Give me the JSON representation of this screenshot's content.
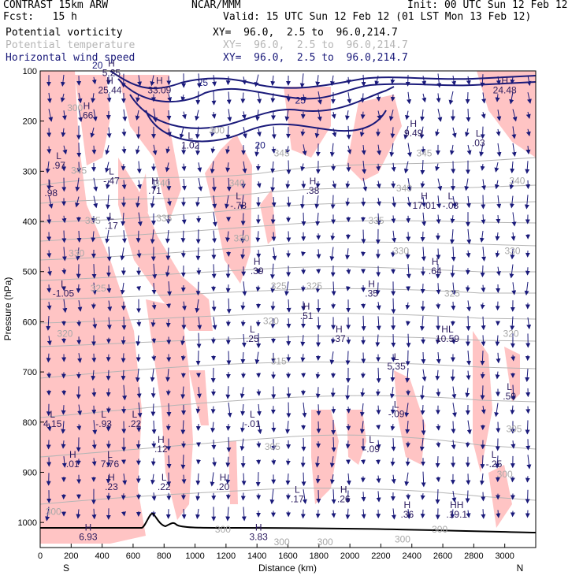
{
  "header": {
    "model": "CONTRAST 15km ARW",
    "center": "NCAR/MMM",
    "init": "Init: 00 UTC Sun 12 Feb 12",
    "fcst": "Fcst:   15 h",
    "valid": "Valid: 15 UTC Sun 12 Feb 12 (01 LST Mon 13 Feb 12)",
    "fields": [
      {
        "name": "Potential vorticity",
        "xy": "XY=  96.0,  2.5 to  96.0,214.7"
      },
      {
        "name": "Potential temperature",
        "xy": "XY=  96.0,  2.5 to  96.0,214.7"
      },
      {
        "name": "Horizontal wind speed",
        "xy": "XY=  96.0,  2.5 to  96.0,214.7"
      }
    ]
  },
  "colors": {
    "pv_fill": "#ffc4c4",
    "theta": "#b5b5b5",
    "wind": "#1a1a7a",
    "terrain": "#000000"
  },
  "chart_data": {
    "type": "cross-section",
    "xlabel": "Distance (km)",
    "ylabel": "Pressure (hPa)",
    "xlim": [
      0,
      3200
    ],
    "ylim": [
      1050,
      100
    ],
    "xticks": [
      "0",
      "200",
      "400",
      "600",
      "800",
      "1000",
      "1200",
      "1400",
      "1600",
      "1800",
      "2000",
      "2200",
      "2400",
      "2600",
      "2800",
      "3000"
    ],
    "yticks": [
      "100",
      "200",
      "300",
      "400",
      "500",
      "600",
      "700",
      "800",
      "900",
      "1000"
    ],
    "ends": {
      "left": "S",
      "right": "N"
    },
    "theta_labels": [
      {
        "t": "300",
        "x": 1140,
        "p": 225
      },
      {
        "t": "345",
        "x": 250,
        "p": 305
      },
      {
        "t": "340",
        "x": 790,
        "p": 330
      },
      {
        "t": "340",
        "x": 1270,
        "p": 330
      },
      {
        "t": "345",
        "x": 1560,
        "p": 270
      },
      {
        "t": "345",
        "x": 2480,
        "p": 270
      },
      {
        "t": "340",
        "x": 2350,
        "p": 340
      },
      {
        "t": "340",
        "x": 3080,
        "p": 325
      },
      {
        "t": "335",
        "x": 340,
        "p": 405
      },
      {
        "t": "335",
        "x": 800,
        "p": 400
      },
      {
        "t": "335",
        "x": 2170,
        "p": 405
      },
      {
        "t": "330",
        "x": 235,
        "p": 470
      },
      {
        "t": "330",
        "x": 1300,
        "p": 440
      },
      {
        "t": "330",
        "x": 2330,
        "p": 465
      },
      {
        "t": "330",
        "x": 3050,
        "p": 465
      },
      {
        "t": "325",
        "x": 375,
        "p": 540
      },
      {
        "t": "325",
        "x": 1540,
        "p": 535
      },
      {
        "t": "325",
        "x": 1770,
        "p": 535
      },
      {
        "t": "325",
        "x": 2660,
        "p": 550
      },
      {
        "t": "320",
        "x": 160,
        "p": 630
      },
      {
        "t": "320",
        "x": 1490,
        "p": 605
      },
      {
        "t": "320",
        "x": 3040,
        "p": 630
      },
      {
        "t": "315",
        "x": 1540,
        "p": 685
      },
      {
        "t": "305",
        "x": 1500,
        "p": 855
      },
      {
        "t": "305",
        "x": 3060,
        "p": 820
      },
      {
        "t": "300",
        "x": 3000,
        "p": 910
      },
      {
        "t": "300",
        "x": 85,
        "p": 985
      },
      {
        "t": "300",
        "x": 1180,
        "p": 1020
      },
      {
        "t": "300",
        "x": 1560,
        "p": 1045
      },
      {
        "t": "300",
        "x": 1840,
        "p": 1045
      },
      {
        "t": "300",
        "x": 2340,
        "p": 1040
      },
      {
        "t": "300",
        "x": 2580,
        "p": 1020
      },
      {
        "t": "300",
        "x": 225,
        "p": 180
      }
    ],
    "extrema": [
      {
        "k": "H",
        "v": "5.25",
        "x": 460,
        "p": 110
      },
      {
        "k": "H",
        "v": "25.44",
        "x": 450,
        "p": 145
      },
      {
        "k": "H",
        "v": "33.09",
        "x": 770,
        "p": 145
      },
      {
        "k": "H",
        "v": ".66",
        "x": 300,
        "p": 195
      },
      {
        "k": "L",
        "v": "1.02",
        "x": 970,
        "p": 255
      },
      {
        "k": "H",
        "v": "9.49",
        "x": 2410,
        "p": 230
      },
      {
        "k": "L",
        "v": ".03",
        "x": 2830,
        "p": 250
      },
      {
        "k": "H",
        "v": "24.48",
        "x": 3000,
        "p": 145
      },
      {
        "k": "L",
        "v": ".97",
        "x": 120,
        "p": 295
      },
      {
        "k": "L",
        "v": "-.47",
        "x": 460,
        "p": 325
      },
      {
        "k": "H",
        "v": ".71",
        "x": 740,
        "p": 345
      },
      {
        "k": "H",
        "v": ".38",
        "x": 1760,
        "p": 345
      },
      {
        "k": "H",
        "v": "17.01",
        "x": 2480,
        "p": 375
      },
      {
        "k": "L",
        "v": "-.03",
        "x": 2650,
        "p": 375
      },
      {
        "k": "L",
        "v": ".98",
        "x": 70,
        "p": 350
      },
      {
        "k": "L",
        "v": "-.78",
        "x": 1280,
        "p": 375
      },
      {
        "k": "L",
        "v": ".17",
        "x": 460,
        "p": 415
      },
      {
        "k": "H",
        "v": ".39",
        "x": 1400,
        "p": 505
      },
      {
        "k": "H",
        "v": ".64",
        "x": 2550,
        "p": 505
      },
      {
        "k": "L",
        "v": "-1.05",
        "x": 150,
        "p": 550
      },
      {
        "k": "H",
        "v": ".35",
        "x": 2140,
        "p": 550
      },
      {
        "k": "H",
        "v": ".51",
        "x": 1720,
        "p": 595
      },
      {
        "k": "L",
        "v": ".25",
        "x": 1370,
        "p": 640
      },
      {
        "k": "H",
        "v": ".37",
        "x": 1930,
        "p": 640
      },
      {
        "k": "HL",
        "v": "10.59",
        "x": 2630,
        "p": 640
      },
      {
        "k": "L",
        "v": "5.35",
        "x": 2300,
        "p": 695
      },
      {
        "k": "L",
        "v": ".50",
        "x": 3030,
        "p": 755
      },
      {
        "k": "L",
        "v": "-.09",
        "x": 2300,
        "p": 790
      },
      {
        "k": "L",
        "v": "4.15",
        "x": 80,
        "p": 810
      },
      {
        "k": "L",
        "v": "-.93",
        "x": 410,
        "p": 810
      },
      {
        "k": "L",
        "v": ".22",
        "x": 610,
        "p": 810
      },
      {
        "k": "L",
        "v": "-.01",
        "x": 1370,
        "p": 810
      },
      {
        "k": "H",
        "v": ".12",
        "x": 780,
        "p": 860
      },
      {
        "k": "L",
        "v": "-.09",
        "x": 2140,
        "p": 860
      },
      {
        "k": "H",
        "v": ".01",
        "x": 210,
        "p": 890
      },
      {
        "k": "L",
        "v": "7.76",
        "x": 450,
        "p": 890
      },
      {
        "k": "L",
        "v": "-.25",
        "x": 2930,
        "p": 890
      },
      {
        "k": "H",
        "v": ".23",
        "x": 460,
        "p": 935
      },
      {
        "k": "L",
        "v": ".22",
        "x": 800,
        "p": 935
      },
      {
        "k": "H",
        "v": ".20",
        "x": 1180,
        "p": 935
      },
      {
        "k": "L",
        "v": ".17",
        "x": 1660,
        "p": 960
      },
      {
        "k": "H",
        "v": ".26",
        "x": 1960,
        "p": 960
      },
      {
        "k": "H",
        "v": ".36",
        "x": 2370,
        "p": 990
      },
      {
        "k": "HH",
        "v": ".19.1",
        "x": 2690,
        "p": 990
      },
      {
        "k": "H",
        "v": "6.93",
        "x": 310,
        "p": 1035
      },
      {
        "k": "H",
        "v": "3.83",
        "x": 1410,
        "p": 1035
      }
    ],
    "wind_contours": [
      {
        "v": "25",
        "x": 1050,
        "p": 130
      },
      {
        "v": "25",
        "x": 1680,
        "p": 165
      },
      {
        "v": "20",
        "x": 1420,
        "p": 255
      },
      {
        "v": "20",
        "x": 370,
        "p": 95
      }
    ]
  }
}
